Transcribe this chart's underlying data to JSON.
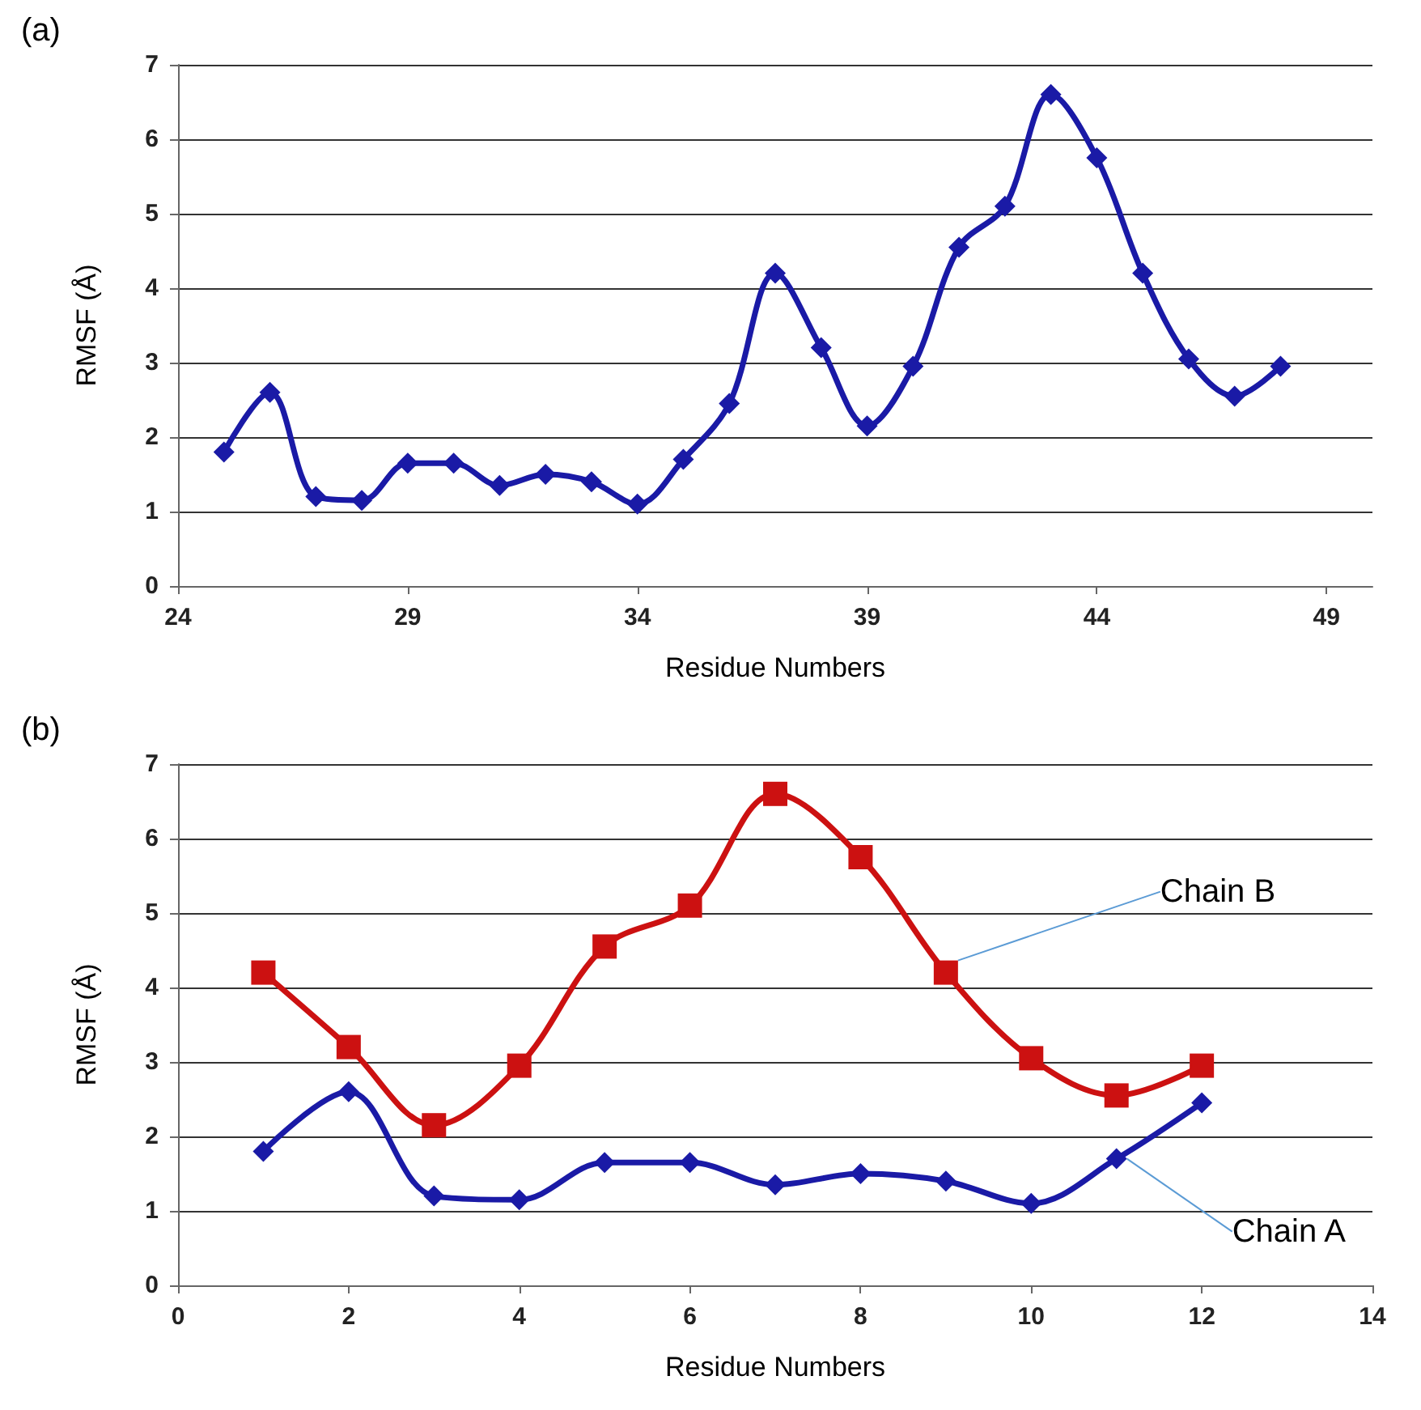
{
  "chart_data": [
    {
      "type": "line",
      "title": "(a)",
      "xlabel": "Residue Numbers",
      "ylabel": "RMSF (Å)",
      "x": [
        25,
        26,
        27,
        28,
        29,
        30,
        31,
        32,
        33,
        34,
        35,
        36,
        37,
        38,
        39,
        40,
        41,
        42,
        43,
        44,
        45,
        46,
        47,
        48
      ],
      "series": [
        {
          "color": "#1a1aa6",
          "marker": "diamond",
          "values": [
            1.8,
            2.6,
            1.2,
            1.15,
            1.65,
            1.65,
            1.35,
            1.5,
            1.4,
            1.1,
            1.7,
            2.45,
            4.2,
            3.2,
            2.15,
            2.95,
            4.55,
            5.1,
            6.6,
            5.75,
            4.2,
            3.05,
            2.55,
            2.95
          ]
        }
      ],
      "xlim": [
        24,
        50
      ],
      "xticks": [
        24,
        29,
        34,
        39,
        44,
        49
      ],
      "ylim": [
        0,
        7
      ],
      "yticks": [
        0,
        1,
        2,
        3,
        4,
        5,
        6,
        7
      ],
      "grid": "y",
      "legend": false
    },
    {
      "type": "line",
      "title": "(b)",
      "xlabel": "Residue Numbers",
      "ylabel": "RMSF (Å)",
      "x": [
        1,
        2,
        3,
        4,
        5,
        6,
        7,
        8,
        9,
        10,
        11,
        12
      ],
      "series": [
        {
          "name": "Chain B",
          "color": "#cc1111",
          "marker": "square",
          "values": [
            4.2,
            3.2,
            2.15,
            2.95,
            4.55,
            5.1,
            6.6,
            5.75,
            4.2,
            3.05,
            2.55,
            2.95
          ]
        },
        {
          "name": "Chain A",
          "color": "#1a1aa6",
          "marker": "diamond",
          "values": [
            1.8,
            2.6,
            1.2,
            1.15,
            1.65,
            1.65,
            1.35,
            1.5,
            1.4,
            1.1,
            1.7,
            2.45
          ]
        }
      ],
      "xlim": [
        0,
        14
      ],
      "xticks": [
        0,
        2,
        4,
        6,
        8,
        10,
        12,
        14
      ],
      "ylim": [
        0,
        7
      ],
      "yticks": [
        0,
        1,
        2,
        3,
        4,
        5,
        6,
        7
      ],
      "grid": "y",
      "legend": false
    }
  ]
}
